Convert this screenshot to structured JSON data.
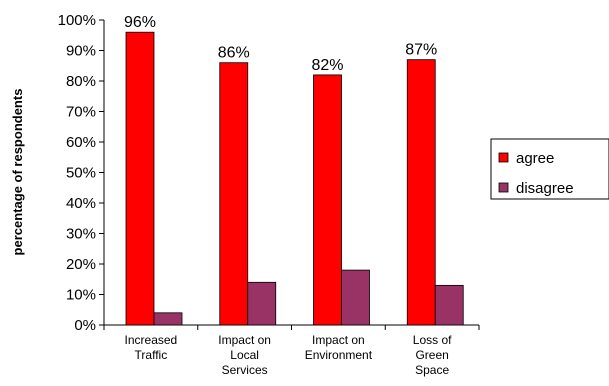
{
  "chart_data": {
    "type": "bar",
    "title": "",
    "xlabel": "",
    "ylabel": "percentage of respondents",
    "ylim": [
      0,
      100
    ],
    "y_ticks": [
      "0%",
      "10%",
      "20%",
      "30%",
      "40%",
      "50%",
      "60%",
      "70%",
      "80%",
      "90%",
      "100%"
    ],
    "categories": [
      [
        "Increased",
        "Traffic"
      ],
      [
        "Impact on",
        "Local",
        "Services"
      ],
      [
        "Impact on",
        "Environment"
      ],
      [
        "Loss of",
        "Green",
        "Space"
      ]
    ],
    "series": [
      {
        "name": "agree",
        "color": "#ff0000",
        "values": [
          96,
          86,
          82,
          87
        ],
        "data_labels": [
          "96%",
          "86%",
          "82%",
          "87%"
        ]
      },
      {
        "name": "disagree",
        "color": "#993366",
        "values": [
          4,
          14,
          18,
          13
        ]
      }
    ],
    "grid": false,
    "legend_position": "right"
  }
}
